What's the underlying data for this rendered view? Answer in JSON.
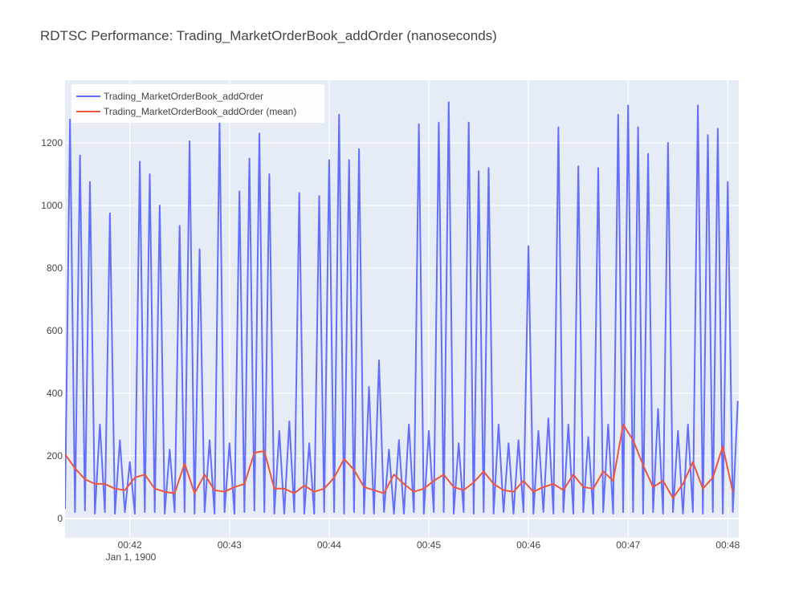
{
  "chart_data": {
    "type": "line",
    "title": "RDTSC Performance: Trading_MarketOrderBook_addOrder (nanoseconds)",
    "x_date_label": "Jan 1, 1900",
    "xlim": [
      41.35,
      48.11
    ],
    "xticks": [
      {
        "value": 42,
        "label": "00:42"
      },
      {
        "value": 43,
        "label": "00:43"
      },
      {
        "value": 44,
        "label": "00:44"
      },
      {
        "value": 45,
        "label": "00:45"
      },
      {
        "value": 46,
        "label": "00:46"
      },
      {
        "value": 47,
        "label": "00:47"
      },
      {
        "value": 48,
        "label": "00:48"
      }
    ],
    "ylim": [
      -62,
      1400
    ],
    "yticks": [
      0,
      200,
      400,
      600,
      800,
      1000,
      1200
    ],
    "grid": true,
    "legend": "top-left",
    "series": [
      {
        "name": "Trading_MarketOrderBook_addOrder",
        "color": "#636efa",
        "x": [
          41.35,
          41.4,
          41.45,
          41.5,
          41.55,
          41.6,
          41.65,
          41.7,
          41.75,
          41.8,
          41.85,
          41.9,
          41.95,
          42,
          42.05,
          42.1,
          42.15,
          42.2,
          42.25,
          42.3,
          42.35,
          42.4,
          42.45,
          42.5,
          42.55,
          42.6,
          42.65,
          42.7,
          42.75,
          42.8,
          42.85,
          42.9,
          42.95,
          43,
          43.05,
          43.1,
          43.15,
          43.2,
          43.25,
          43.3,
          43.35,
          43.4,
          43.45,
          43.5,
          43.55,
          43.6,
          43.65,
          43.7,
          43.75,
          43.8,
          43.85,
          43.9,
          43.95,
          44,
          44.05,
          44.1,
          44.15,
          44.2,
          44.25,
          44.3,
          44.35,
          44.4,
          44.45,
          44.5,
          44.55,
          44.6,
          44.65,
          44.7,
          44.75,
          44.8,
          44.85,
          44.9,
          44.95,
          45,
          45.05,
          45.1,
          45.15,
          45.2,
          45.25,
          45.3,
          45.35,
          45.4,
          45.45,
          45.5,
          45.55,
          45.6,
          45.65,
          45.7,
          45.75,
          45.8,
          45.85,
          45.9,
          45.95,
          46,
          46.05,
          46.1,
          46.15,
          46.2,
          46.25,
          46.3,
          46.35,
          46.4,
          46.45,
          46.5,
          46.55,
          46.6,
          46.65,
          46.7,
          46.75,
          46.8,
          46.85,
          46.9,
          46.95,
          47,
          47.05,
          47.1,
          47.15,
          47.2,
          47.25,
          47.3,
          47.35,
          47.4,
          47.45,
          47.5,
          47.55,
          47.6,
          47.65,
          47.7,
          47.75,
          47.8,
          47.85,
          47.9,
          47.95,
          48,
          48.05,
          48.1
        ],
        "values": [
          30,
          1275,
          20,
          1160,
          25,
          1075,
          15,
          300,
          20,
          975,
          15,
          250,
          20,
          180,
          15,
          1140,
          20,
          1100,
          20,
          1000,
          15,
          220,
          20,
          935,
          20,
          1205,
          15,
          860,
          20,
          250,
          15,
          1265,
          20,
          240,
          15,
          1045,
          20,
          1150,
          25,
          1230,
          20,
          1100,
          15,
          280,
          15,
          310,
          20,
          1040,
          15,
          240,
          15,
          1030,
          20,
          1145,
          20,
          1290,
          15,
          1145,
          20,
          1180,
          15,
          420,
          15,
          505,
          20,
          220,
          15,
          250,
          15,
          300,
          20,
          1260,
          15,
          280,
          20,
          1265,
          20,
          1330,
          15,
          240,
          20,
          1265,
          15,
          1110,
          20,
          1120,
          15,
          300,
          20,
          240,
          15,
          250,
          20,
          870,
          15,
          280,
          20,
          320,
          15,
          1250,
          20,
          300,
          15,
          1125,
          20,
          260,
          15,
          1120,
          20,
          300,
          15,
          1290,
          20,
          1320,
          20,
          1250,
          15,
          1165,
          20,
          350,
          15,
          1200,
          20,
          280,
          15,
          300,
          20,
          1320,
          15,
          1225,
          20,
          1245,
          15,
          1075,
          20,
          375
        ]
      },
      {
        "name": "Trading_MarketOrderBook_addOrder (mean)",
        "color": "#ef553b",
        "x": [
          41.35,
          41.45,
          41.55,
          41.65,
          41.75,
          41.85,
          41.95,
          42.05,
          42.15,
          42.25,
          42.35,
          42.45,
          42.55,
          42.65,
          42.75,
          42.85,
          42.95,
          43.05,
          43.15,
          43.25,
          43.35,
          43.45,
          43.55,
          43.65,
          43.75,
          43.85,
          43.95,
          44.05,
          44.15,
          44.25,
          44.35,
          44.45,
          44.55,
          44.65,
          44.75,
          44.85,
          44.95,
          45.05,
          45.15,
          45.25,
          45.35,
          45.45,
          45.55,
          45.65,
          45.75,
          45.85,
          45.95,
          46.05,
          46.15,
          46.25,
          46.35,
          46.45,
          46.55,
          46.65,
          46.75,
          46.85,
          46.95,
          47.05,
          47.15,
          47.25,
          47.35,
          47.45,
          47.55,
          47.65,
          47.75,
          47.85,
          47.95,
          48.05
        ],
        "values": [
          205,
          160,
          125,
          110,
          110,
          95,
          90,
          130,
          140,
          95,
          85,
          80,
          175,
          80,
          140,
          90,
          85,
          100,
          110,
          210,
          215,
          95,
          95,
          80,
          105,
          85,
          95,
          130,
          190,
          155,
          100,
          90,
          80,
          140,
          110,
          85,
          95,
          120,
          140,
          100,
          90,
          115,
          150,
          110,
          90,
          85,
          120,
          85,
          100,
          110,
          90,
          140,
          100,
          95,
          150,
          120,
          300,
          250,
          170,
          100,
          120,
          65,
          110,
          180,
          95,
          130,
          230,
          85
        ]
      }
    ]
  }
}
